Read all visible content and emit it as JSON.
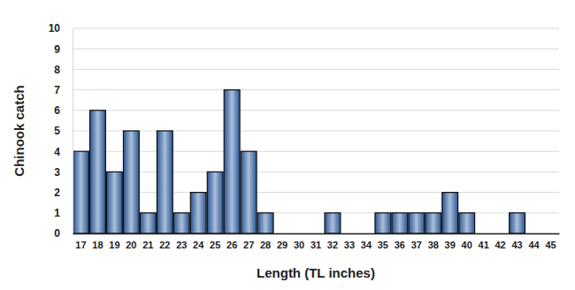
{
  "chart_data": {
    "type": "bar",
    "x_label": "Length (TL inches)",
    "y_label": "Chinook catch",
    "categories": [
      "17",
      "18",
      "19",
      "20",
      "21",
      "22",
      "23",
      "24",
      "25",
      "26",
      "27",
      "28",
      "29",
      "30",
      "31",
      "32",
      "33",
      "34",
      "35",
      "36",
      "37",
      "38",
      "39",
      "40",
      "41",
      "42",
      "43",
      "44",
      "45"
    ],
    "values": [
      4,
      6,
      3,
      5,
      1,
      5,
      1,
      2,
      3,
      7,
      4,
      1,
      0,
      0,
      0,
      1,
      0,
      0,
      1,
      1,
      1,
      1,
      2,
      1,
      0,
      0,
      1,
      0,
      0
    ],
    "color": "#2e5fa3",
    "ylim": [
      0,
      10
    ],
    "yticks": [
      0,
      1,
      2,
      3,
      4,
      5,
      6,
      7,
      8,
      9,
      10
    ],
    "grid": true
  }
}
